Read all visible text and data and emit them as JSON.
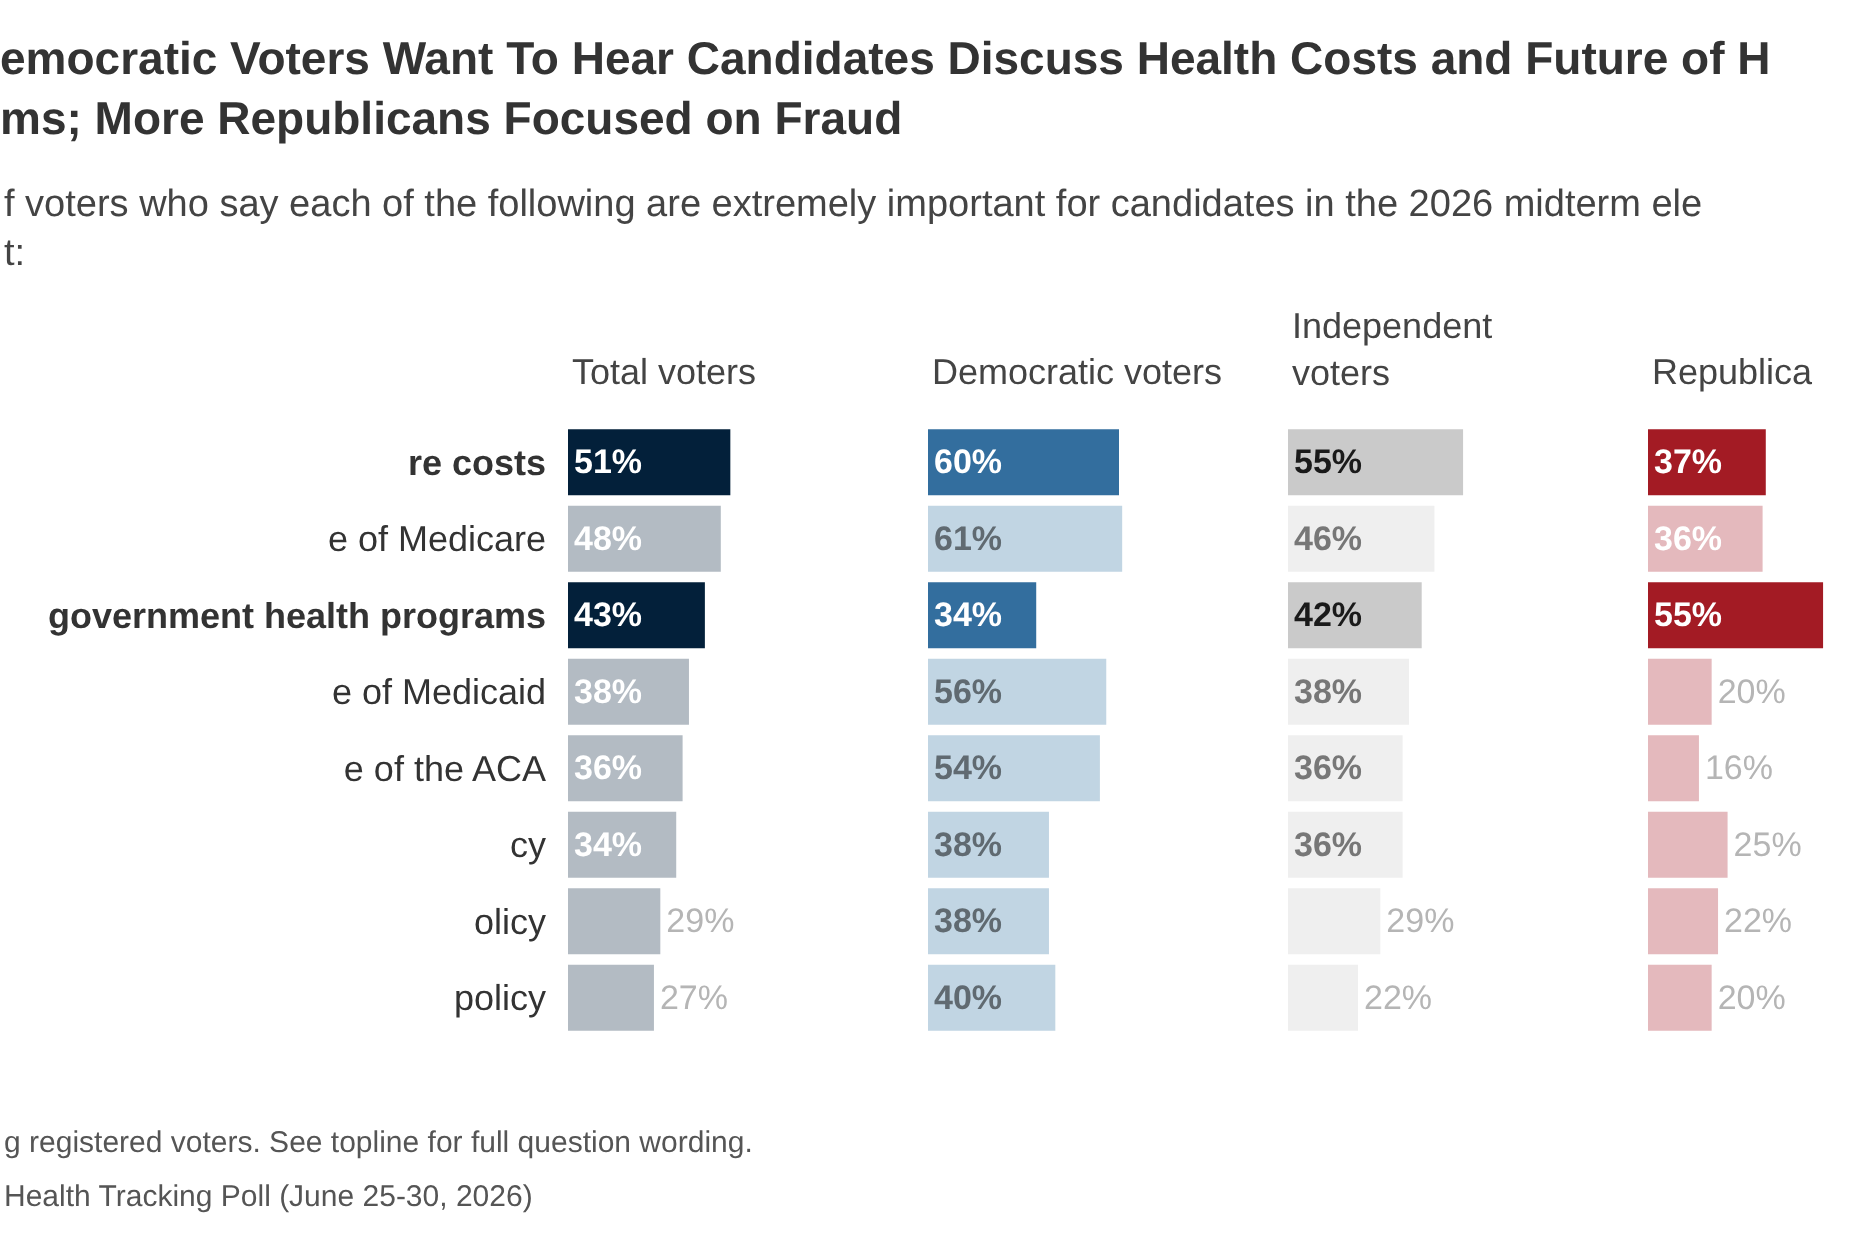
{
  "chart_data": [
    {
      "type": "other",
      "title": "emocratic Voters Want To Hear Candidates Discuss Health Costs and Future of H\nms; More Republicans Focused on Fraud",
      "subtitle": "f voters who say each of the following are extremely important for candidates in the 2026 midterm ele\nt:",
      "annotations": [
        "g registered voters. See topline for full question wording.",
        "Health Tracking Poll (June 25-30, 2026)"
      ]
    },
    {
      "type": "bar",
      "orientation": "horizontal",
      "title": "Total voters",
      "categories": [
        "re costs",
        "e of Medicare",
        "government health programs",
        "e of Medicaid",
        "e of the ACA",
        "cy",
        "olicy",
        "policy"
      ],
      "values": [
        51,
        48,
        43,
        38,
        36,
        34,
        29,
        27
      ],
      "colors": [
        "#03203a",
        "#b3bbc3",
        "#03203a",
        "#b3bbc3",
        "#b3bbc3",
        "#b3bbc3",
        "#b3bbc3",
        "#b3bbc3"
      ],
      "value_labels": [
        "51%",
        "48%",
        "43%",
        "38%",
        "36%",
        "34%",
        "29%",
        "27%"
      ],
      "tick_labels": "y"
    },
    {
      "type": "bar",
      "orientation": "horizontal",
      "title": "Democratic voters",
      "categories": [
        null,
        null,
        null,
        null,
        null,
        null,
        null,
        null
      ],
      "values": [
        60,
        61,
        34,
        56,
        54,
        38,
        38,
        40
      ],
      "colors": [
        "#336e9e",
        "#c1d5e3",
        "#336e9e",
        "#c1d5e3",
        "#c1d5e3",
        "#c1d5e3",
        "#c1d5e3",
        "#c1d5e3"
      ],
      "value_labels": [
        "60%",
        "61%",
        "34%",
        "56%",
        "54%",
        "38%",
        "38%",
        "40%"
      ],
      "tick_labels": false
    },
    {
      "type": "bar",
      "orientation": "horizontal",
      "title": "Independent\nvoters",
      "categories": [
        null,
        null,
        null,
        null,
        null,
        null,
        null,
        null
      ],
      "values": [
        55,
        46,
        42,
        38,
        36,
        36,
        29,
        22
      ],
      "colors": [
        "#cacaca",
        "#efefef",
        "#cacaca",
        "#efefef",
        "#efefef",
        "#efefef",
        "#efefef",
        "#efefef"
      ],
      "value_labels": [
        "55%",
        "46%",
        "42%",
        "38%",
        "36%",
        "36%",
        "29%",
        "22%"
      ],
      "tick_labels": false
    },
    {
      "type": "bar",
      "orientation": "horizontal",
      "title": "Republica",
      "categories": [
        null,
        null,
        null,
        null,
        null,
        null,
        null,
        null
      ],
      "values": [
        37,
        36,
        55,
        20,
        16,
        25,
        22,
        20
      ],
      "colors": [
        "#a31b24",
        "#e4b9bd",
        "#a31b24",
        "#e4b9bd",
        "#e4b9bd",
        "#e4b9bd",
        "#e4b9bd",
        "#e4b9bd"
      ],
      "value_labels": [
        "37%",
        "36%",
        "55%",
        "20%",
        "16%",
        "25%",
        "22%",
        "20%"
      ],
      "tick_labels": false
    }
  ]
}
